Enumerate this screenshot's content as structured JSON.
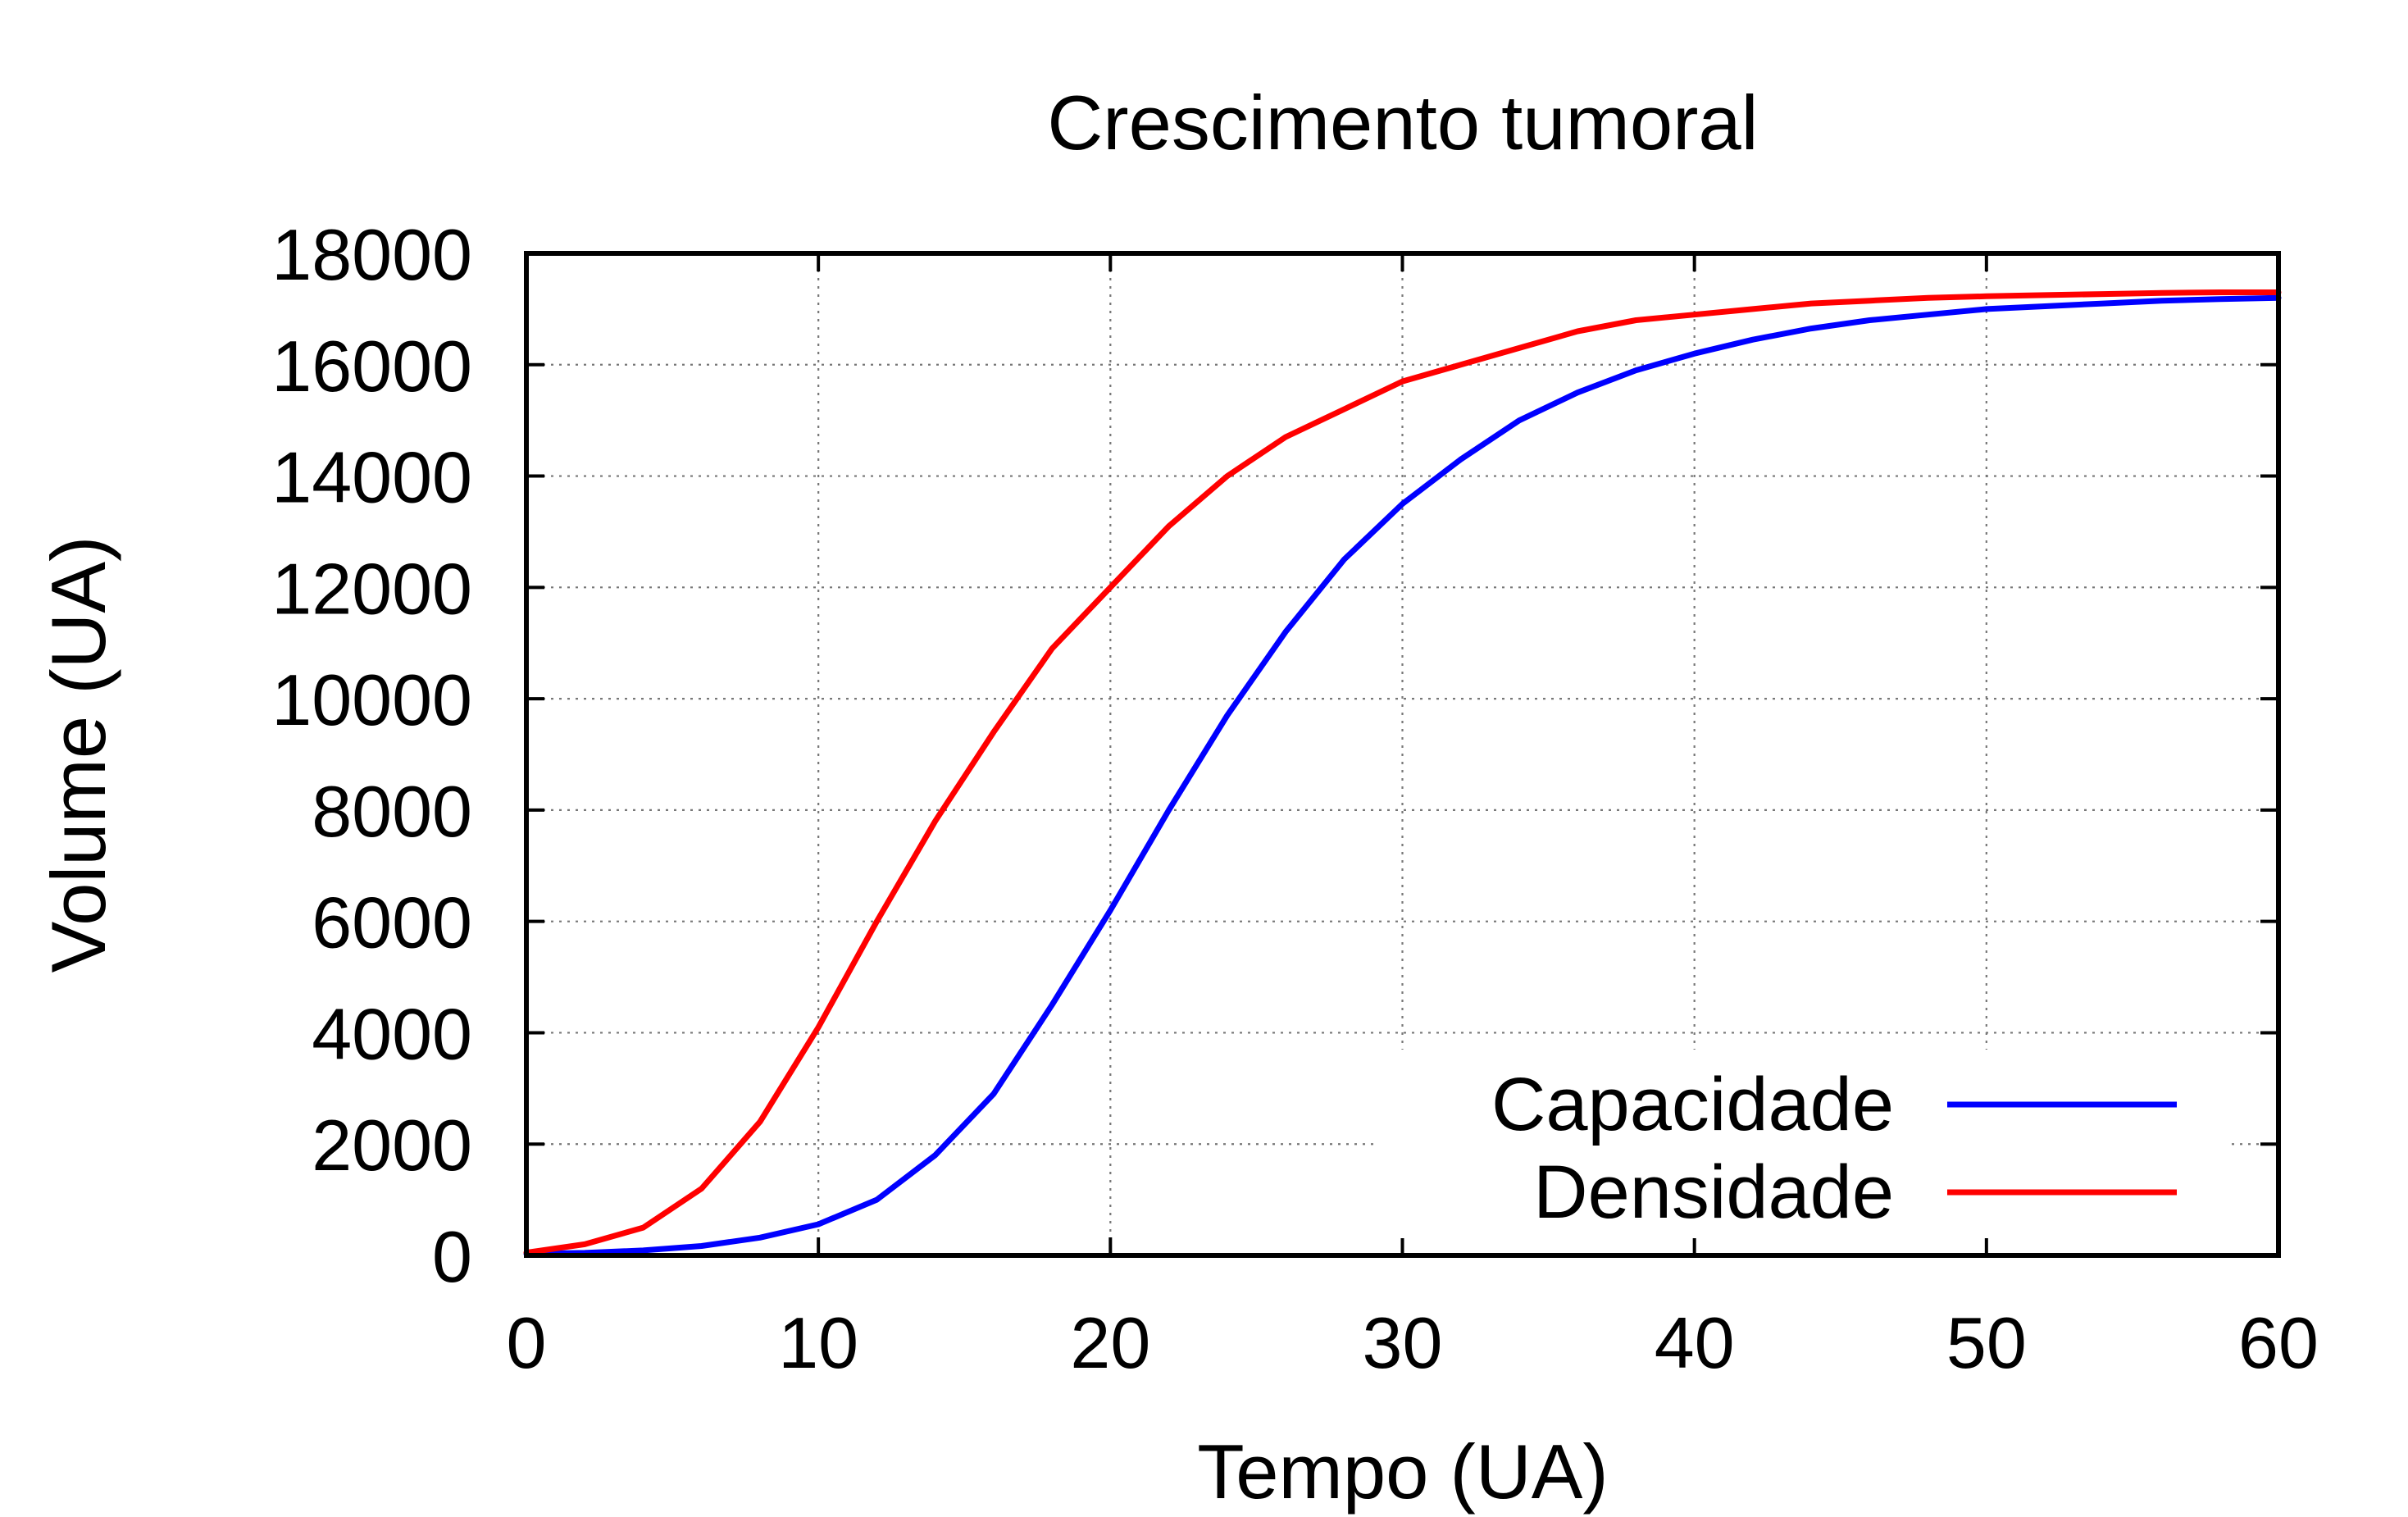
{
  "chart_data": {
    "type": "line",
    "title": "Crescimento tumoral",
    "xlabel": "Tempo (UA)",
    "ylabel": "Volume (UA)",
    "xlim": [
      0,
      60
    ],
    "ylim": [
      0,
      18000
    ],
    "xticks": [
      "0",
      "10",
      "20",
      "30",
      "40",
      "50",
      "60"
    ],
    "yticks": [
      "0",
      "2000",
      "4000",
      "6000",
      "8000",
      "10000",
      "12000",
      "14000",
      "16000",
      "18000"
    ],
    "grid": true,
    "legend": "bottom-right",
    "series": [
      {
        "name": "Capacidade",
        "color": "#0000ff",
        "x": [
          0,
          2,
          4,
          6,
          8,
          10,
          12,
          14,
          16,
          18,
          20,
          22,
          24,
          26,
          28,
          30,
          32,
          34,
          36,
          38,
          40,
          42,
          44,
          46,
          48,
          50,
          52,
          54,
          56,
          58,
          60
        ],
        "y": [
          30,
          45,
          90,
          170,
          320,
          560,
          1000,
          1800,
          2900,
          4500,
          6200,
          8000,
          9700,
          11200,
          12500,
          13500,
          14300,
          15000,
          15500,
          15900,
          16200,
          16450,
          16650,
          16800,
          16900,
          17000,
          17050,
          17100,
          17150,
          17180,
          17200
        ]
      },
      {
        "name": "Densidade",
        "color": "#ff0000",
        "x": [
          0,
          2,
          4,
          6,
          8,
          10,
          12,
          14,
          16,
          18,
          20,
          22,
          24,
          26,
          28,
          30,
          32,
          34,
          36,
          38,
          40,
          42,
          44,
          46,
          48,
          50,
          52,
          54,
          56,
          58,
          60
        ],
        "y": [
          50,
          200,
          500,
          1200,
          2400,
          4100,
          6000,
          7800,
          9400,
          10900,
          12000,
          13100,
          14000,
          14700,
          15200,
          15700,
          16000,
          16300,
          16600,
          16800,
          16900,
          17000,
          17100,
          17150,
          17200,
          17230,
          17250,
          17270,
          17290,
          17300,
          17300
        ]
      }
    ]
  }
}
